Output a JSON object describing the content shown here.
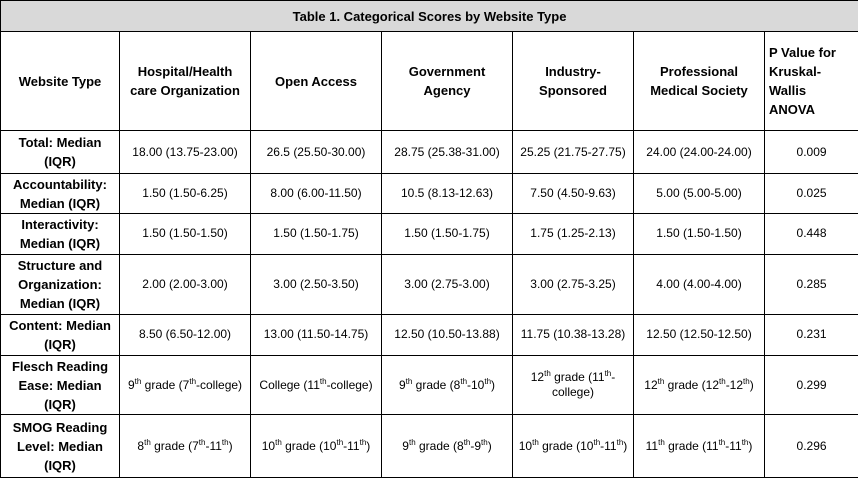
{
  "title": "Table 1. Categorical Scores by Website Type",
  "headers": {
    "website_type": "Website Type",
    "hospital": "Hospital/Health care Organization",
    "open_access": "Open Access",
    "government": "Government Agency",
    "industry": "Industry-Sponsored",
    "professional": "Professional Medical Society",
    "p_value": "P Value for Kruskal-Wallis ANOVA"
  },
  "rows": [
    {
      "label": "Total: Median (IQR)",
      "hospital": "18.00 (13.75-23.00)",
      "open_access": "26.5 (25.50-30.00)",
      "government": "28.75 (25.38-31.00)",
      "industry": "25.25 (21.75-27.75)",
      "professional": "24.00 (24.00-24.00)",
      "p": "0.009"
    },
    {
      "label": "Accountability: Median (IQR)",
      "hospital": "1.50 (1.50-6.25)",
      "open_access": "8.00 (6.00-11.50)",
      "government": "10.5 (8.13-12.63)",
      "industry": "7.50 (4.50-9.63)",
      "professional": "5.00 (5.00-5.00)",
      "p": "0.025"
    },
    {
      "label": "Interactivity: Median (IQR)",
      "hospital": "1.50 (1.50-1.50)",
      "open_access": "1.50 (1.50-1.75)",
      "government": "1.50 (1.50-1.75)",
      "industry": "1.75 (1.25-2.13)",
      "professional": "1.50 (1.50-1.50)",
      "p": "0.448"
    },
    {
      "label": "Structure and Organization: Median (IQR)",
      "hospital": "2.00 (2.00-3.00)",
      "open_access": "3.00 (2.50-3.50)",
      "government": "3.00 (2.75-3.00)",
      "industry": "3.00 (2.75-3.25)",
      "professional": "4.00 (4.00-4.00)",
      "p": "0.285"
    },
    {
      "label": "Content: Median (IQR)",
      "hospital": "8.50 (6.50-12.00)",
      "open_access": "13.00 (11.50-14.75)",
      "government": "12.50 (10.50-13.88)",
      "industry": "11.75 (10.38-13.28)",
      "professional": "12.50 (12.50-12.50)",
      "p": "0.231"
    },
    {
      "label": "Flesch Reading Ease: Median (IQR)",
      "hospital": "9th grade (7th-college)",
      "open_access": "College (11th-college)",
      "government": "9th grade (8th-10th)",
      "industry": "12th grade (11th-college)",
      "professional": "12th grade (12th-12th)",
      "p": "0.299"
    },
    {
      "label": "SMOG Reading Level: Median (IQR)",
      "hospital": "8th grade (7th-11th)",
      "open_access": "10th grade (10th-11th)",
      "government": "9th grade (8th-9th)",
      "industry": "10th grade (10th-11th)",
      "professional": "11th grade (11th-11th)",
      "p": "0.296"
    }
  ]
}
